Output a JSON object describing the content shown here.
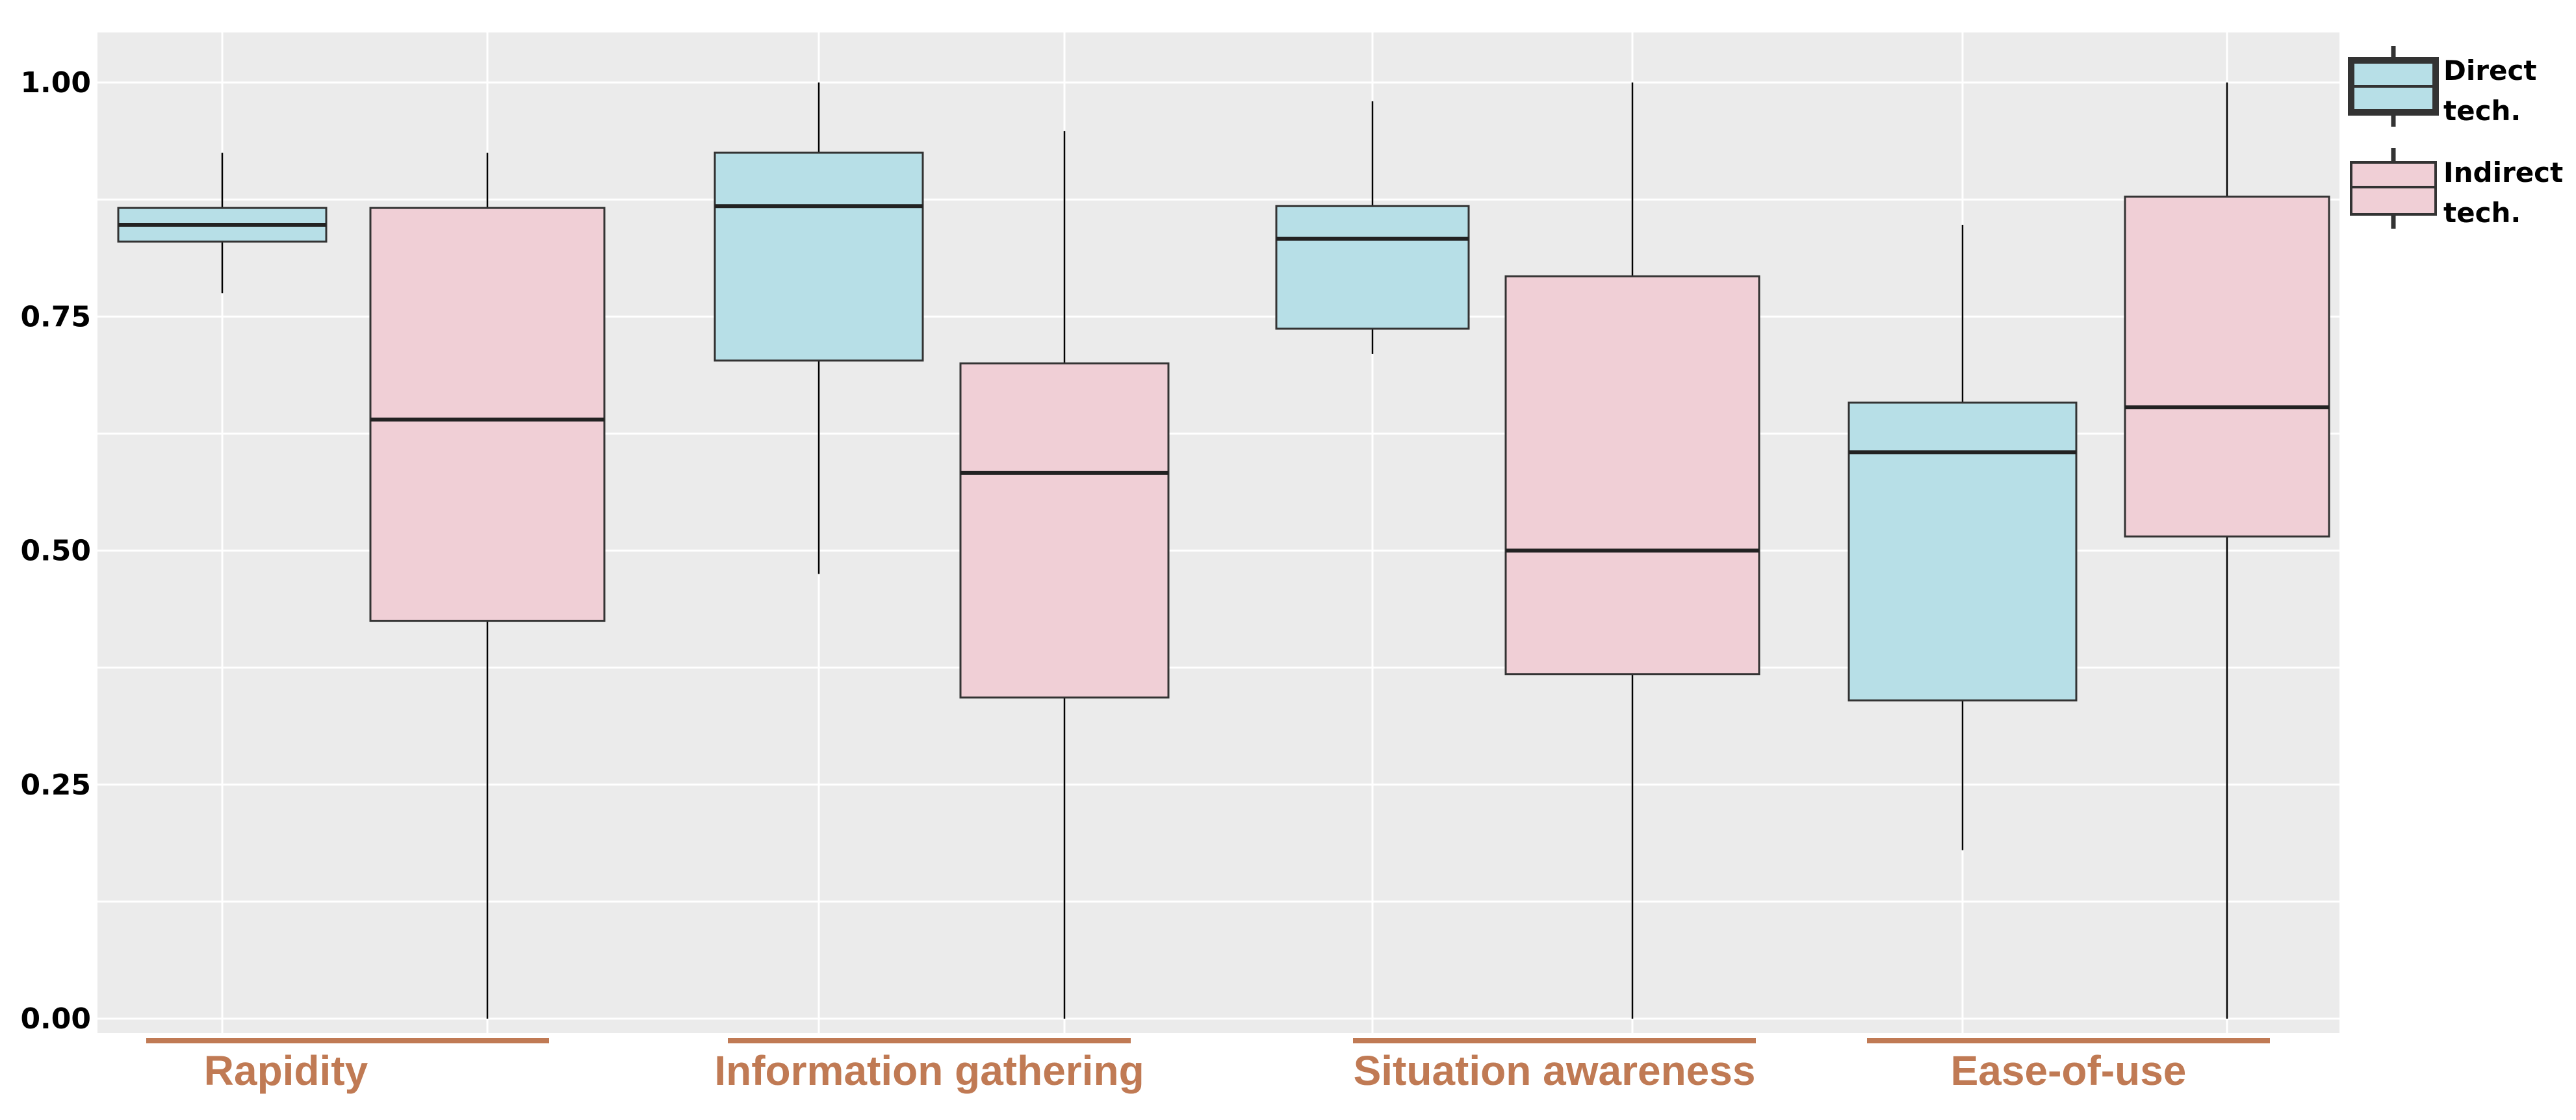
{
  "chart_data": {
    "type": "box",
    "title": "",
    "xlabel": "",
    "ylabel": "",
    "ylim": [
      0,
      1
    ],
    "grid": true,
    "legend_position": "top-right",
    "yticks": [
      0.0,
      0.25,
      0.5,
      0.75,
      1.0
    ],
    "ytick_labels": [
      "0.00",
      "0.25",
      "0.50",
      "0.75",
      "1.00"
    ],
    "categories": [
      "Rapidity",
      "Information gathering",
      "Situation awareness",
      "Ease-of-use"
    ],
    "series": [
      {
        "name_lines": [
          "Direct",
          "tech."
        ],
        "color": "#b7dfe7",
        "boxes": [
          {
            "whisker_low": 0.775,
            "q1": 0.83,
            "median": 0.848,
            "q3": 0.866,
            "whisker_high": 0.925
          },
          {
            "whisker_low": 0.475,
            "q1": 0.703,
            "median": 0.868,
            "q3": 0.925,
            "whisker_high": 1.0
          },
          {
            "whisker_low": 0.71,
            "q1": 0.737,
            "median": 0.833,
            "q3": 0.868,
            "whisker_high": 0.98
          },
          {
            "whisker_low": 0.18,
            "q1": 0.34,
            "median": 0.605,
            "q3": 0.658,
            "whisker_high": 0.848
          }
        ]
      },
      {
        "name_lines": [
          "Indirect",
          "tech."
        ],
        "color": "#f0cfd6",
        "boxes": [
          {
            "whisker_low": 0.0,
            "q1": 0.425,
            "median": 0.64,
            "q3": 0.866,
            "whisker_high": 0.925
          },
          {
            "whisker_low": 0.0,
            "q1": 0.343,
            "median": 0.583,
            "q3": 0.7,
            "whisker_high": 0.948
          },
          {
            "whisker_low": 0.0,
            "q1": 0.368,
            "median": 0.5,
            "q3": 0.793,
            "whisker_high": 1.0
          },
          {
            "whisker_low": 0.0,
            "q1": 0.515,
            "median": 0.653,
            "q3": 0.878,
            "whisker_high": 1.0
          }
        ]
      }
    ],
    "colors": {
      "plot_background": "#ebebeb",
      "grid": "#ffffff",
      "category_label": "#c07a54",
      "box_edge": "#333333"
    }
  }
}
